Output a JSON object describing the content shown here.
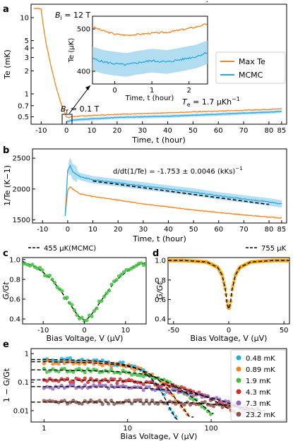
{
  "panel_labels": {
    "a": "a",
    "b": "b",
    "c": "c",
    "d": "d",
    "e": "e"
  },
  "chart_data": [
    {
      "panel": "a",
      "type": "line",
      "xlabel": "Time, t (hour)",
      "ylabel": "Te (mK)",
      "y_scale": "log",
      "xlim": [
        -14,
        87
      ],
      "ylim": [
        0.4,
        15
      ],
      "xticks": [
        -10,
        0,
        10,
        20,
        30,
        40,
        50,
        60,
        70,
        80,
        85
      ],
      "yticks": [
        0.5,
        0.7,
        1,
        2,
        3,
        4,
        5,
        10
      ],
      "ytick_labels": [
        "0.5",
        "0.7",
        "1",
        "2",
        "3",
        "4",
        "5",
        "10"
      ],
      "annotations": {
        "bi": "B",
        "bi_sub": "i",
        "bi_val": " = 12 T",
        "bf": "B",
        "bf_sub": "f",
        "bf_val": " = 0.1 T",
        "rate_pre": "T",
        "rate_sub": "e",
        "rate_val": " = 1.7 μKh",
        "rate_exp": "−1"
      },
      "legend": {
        "position": "right",
        "entries": [
          "Max Te",
          "MCMC"
        ]
      },
      "series": [
        {
          "name": "Max Te",
          "color": "#f7831f",
          "x": [
            -13,
            -11.5,
            -10,
            -9.2,
            -8,
            -6,
            -4,
            -2,
            -1,
            0,
            1,
            2,
            5,
            10,
            20,
            30,
            40,
            50,
            60,
            70,
            80,
            85
          ],
          "y": [
            13.2,
            13.3,
            12.9,
            8,
            4.5,
            2.2,
            1.2,
            0.72,
            0.6,
            0.5,
            0.49,
            0.5,
            0.51,
            0.52,
            0.54,
            0.55,
            0.565,
            0.58,
            0.595,
            0.61,
            0.625,
            0.64
          ]
        },
        {
          "name": "MCMC",
          "color": "#29a8e0",
          "x": [
            0,
            1,
            2,
            5,
            10,
            20,
            30,
            40,
            50,
            60,
            70,
            80,
            85
          ],
          "y": [
            0.43,
            0.44,
            0.45,
            0.46,
            0.47,
            0.49,
            0.5,
            0.51,
            0.525,
            0.54,
            0.56,
            0.575,
            0.59
          ]
        }
      ]
    },
    {
      "panel": "a-inset",
      "type": "line",
      "xlabel": "Time, t (hour)",
      "ylabel": "Te (μK)",
      "xlim": [
        -0.6,
        2.5
      ],
      "ylim": [
        370,
        530
      ],
      "xticks": [
        0,
        1,
        2
      ],
      "yticks": [
        400,
        500
      ],
      "series": [
        {
          "name": "Max Te",
          "color": "#f7831f",
          "x": [
            -0.6,
            -0.3,
            0,
            0.3,
            0.6,
            1,
            1.4,
            1.8,
            2.2,
            2.5
          ],
          "y": [
            505,
            495,
            488,
            485,
            487,
            490,
            492,
            498,
            505,
            512
          ]
        },
        {
          "name": "MCMC",
          "color": "#29a8e0",
          "x": [
            -0.6,
            -0.3,
            0,
            0.3,
            0.6,
            1,
            1.4,
            1.8,
            2.2,
            2.5
          ],
          "y": [
            430,
            422,
            418,
            415,
            420,
            425,
            422,
            428,
            435,
            445
          ]
        }
      ]
    },
    {
      "panel": "b",
      "type": "line",
      "xlabel": "Time, t (hour)",
      "ylabel": "1/Te (K−1)",
      "xlim": [
        -14,
        87
      ],
      "ylim": [
        1450,
        2650
      ],
      "xticks": [
        -10,
        0,
        10,
        20,
        30,
        40,
        50,
        60,
        70,
        80,
        85
      ],
      "yticks": [
        1500,
        2000,
        2500
      ],
      "annotation": {
        "prefix": "d/dt(1/Te) =",
        "value": " -1.753 ± 0.0046 (kKs)",
        "exp": "−1"
      },
      "series": [
        {
          "name": "Max Te",
          "color": "#f7831f",
          "x": [
            -1,
            0,
            1,
            2,
            5,
            10,
            20,
            30,
            40,
            50,
            60,
            70,
            80,
            85
          ],
          "y": [
            1560,
            1980,
            2040,
            2000,
            1920,
            1880,
            1820,
            1760,
            1710,
            1660,
            1620,
            1580,
            1545,
            1530
          ]
        },
        {
          "name": "MCMC",
          "color": "#29a8e0",
          "x": [
            -1,
            0,
            1,
            2,
            5,
            10,
            20,
            30,
            40,
            50,
            60,
            70,
            80,
            85
          ],
          "y": [
            1560,
            2300,
            2380,
            2280,
            2200,
            2150,
            2100,
            2050,
            2000,
            1950,
            1890,
            1840,
            1790,
            1760
          ]
        },
        {
          "name": "fit",
          "color": "#000000",
          "x": [
            10,
            80
          ],
          "y": [
            2130,
            1750
          ]
        }
      ]
    },
    {
      "panel": "c",
      "type": "scatter",
      "xlabel": "Bias Voltage, V (μV)",
      "ylabel": "G/Gt",
      "xlim": [
        -15,
        15
      ],
      "ylim": [
        0.35,
        1.02
      ],
      "xticks": [
        -10,
        0,
        10
      ],
      "yticks": [
        0.4,
        0.6,
        0.8,
        1.0
      ],
      "legend": {
        "position": "top",
        "entries": [
          "455 μK(MCMC)"
        ]
      },
      "series": [
        {
          "name": "",
          "color": "#3dbf3d",
          "x": [
            -15,
            -12,
            -10,
            -8,
            -6,
            -4,
            -2,
            -1,
            0,
            1,
            2,
            4,
            6,
            8,
            10,
            12,
            15
          ],
          "y": [
            0.98,
            0.93,
            0.87,
            0.8,
            0.7,
            0.58,
            0.46,
            0.41,
            0.39,
            0.41,
            0.46,
            0.58,
            0.7,
            0.8,
            0.87,
            0.93,
            0.97
          ]
        }
      ]
    },
    {
      "panel": "d",
      "type": "scatter",
      "xlabel": "Bias Voltage, V (μV)",
      "ylabel": "G/Gt",
      "xlim": [
        -55,
        55
      ],
      "ylim": [
        0.35,
        1.03
      ],
      "xticks": [
        -50,
        0,
        50
      ],
      "yticks": [
        0.4,
        0.6,
        0.8,
        1.0
      ],
      "legend": {
        "position": "top",
        "entries": [
          "755 μK"
        ]
      },
      "series": [
        {
          "name": "",
          "color": "#f5a70a",
          "x": [
            -55,
            -40,
            -20,
            -10,
            -6,
            -3,
            -1.5,
            0,
            1.5,
            3,
            6,
            10,
            20,
            40,
            55
          ],
          "y": [
            1.0,
            1.0,
            0.985,
            0.93,
            0.85,
            0.7,
            0.56,
            0.5,
            0.56,
            0.7,
            0.85,
            0.93,
            0.985,
            1.0,
            1.0
          ]
        }
      ]
    },
    {
      "panel": "e",
      "type": "scatter",
      "xlabel": "Bias Voltage, V (μV)",
      "ylabel": "1 − G/Gt",
      "x_scale": "log",
      "y_scale": "log",
      "xlim": [
        0.7,
        800
      ],
      "ylim": [
        0.004,
        1.5
      ],
      "xticks": [
        1,
        10,
        100
      ],
      "yticks": [
        0.01,
        0.1,
        1
      ],
      "legend": {
        "position": "right",
        "entries": [
          "0.48 mK",
          "0.89 mK",
          "1.9 mK",
          "4.3 mK",
          "7.3 mK",
          "23.2 mK"
        ]
      },
      "series": [
        {
          "name": "0.48 mK",
          "color": "#1faee0",
          "x": [
            1,
            2,
            4,
            8,
            14,
            20,
            26,
            32,
            38
          ],
          "y": [
            0.62,
            0.6,
            0.55,
            0.45,
            0.28,
            0.12,
            0.04,
            0.012,
            0.005
          ]
        },
        {
          "name": "0.89 mK",
          "color": "#f7831f",
          "x": [
            1,
            2,
            4,
            8,
            14,
            20,
            30,
            40,
            55
          ],
          "y": [
            0.52,
            0.5,
            0.47,
            0.4,
            0.28,
            0.17,
            0.06,
            0.02,
            0.006
          ]
        },
        {
          "name": "1.9 mK",
          "color": "#3dbf3d",
          "x": [
            1,
            2,
            4,
            8,
            14,
            20,
            30,
            45,
            70,
            100
          ],
          "y": [
            0.27,
            0.26,
            0.25,
            0.23,
            0.2,
            0.16,
            0.1,
            0.05,
            0.02,
            0.008
          ]
        },
        {
          "name": "4.3 mK",
          "color": "#d62728",
          "x": [
            1,
            2,
            4,
            8,
            14,
            20,
            35,
            60,
            100,
            150,
            200
          ],
          "y": [
            0.12,
            0.118,
            0.115,
            0.11,
            0.1,
            0.09,
            0.07,
            0.045,
            0.025,
            0.013,
            0.008
          ]
        },
        {
          "name": "7.3 mK",
          "color": "#9467bd",
          "x": [
            1,
            2,
            4,
            8,
            14,
            20,
            35,
            60,
            100,
            180,
            300
          ],
          "y": [
            0.07,
            0.07,
            0.068,
            0.066,
            0.062,
            0.058,
            0.05,
            0.04,
            0.028,
            0.016,
            0.009
          ]
        },
        {
          "name": "23.2 mK",
          "color": "#8c564b",
          "x": [
            1,
            3,
            8,
            20,
            50,
            100,
            200,
            400
          ],
          "y": [
            0.02,
            0.02,
            0.02,
            0.02,
            0.019,
            0.017,
            0.014,
            0.01
          ]
        }
      ]
    }
  ]
}
